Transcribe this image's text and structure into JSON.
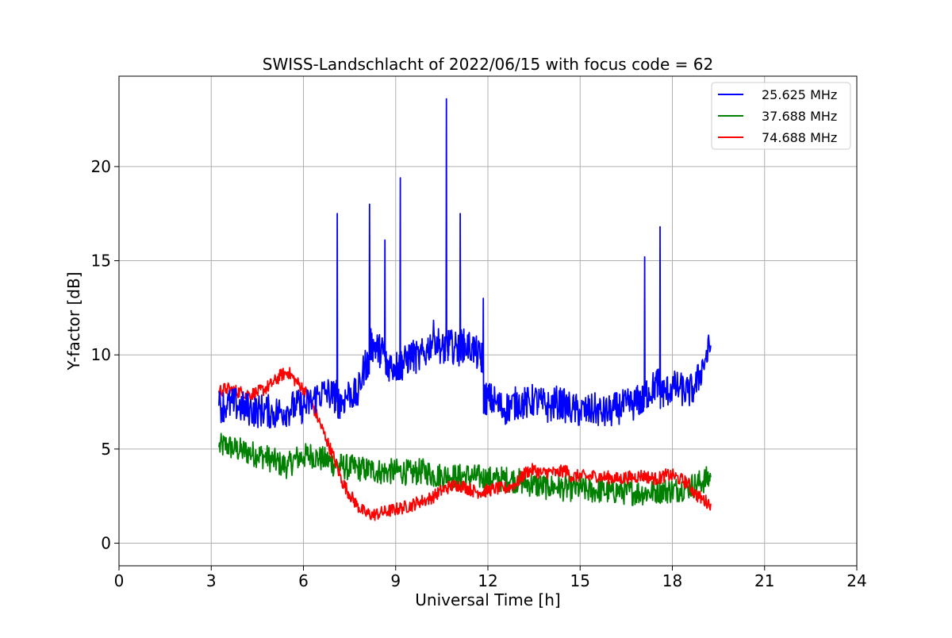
{
  "chart_data": {
    "type": "line",
    "title": "SWISS-Landschlacht of 2022/06/15 with focus code = 62",
    "xlabel": "Universal Time [h]",
    "ylabel": "Y-factor [dB]",
    "xlim": [
      0,
      24
    ],
    "ylim": [
      -1.2,
      24.8
    ],
    "xticks": [
      0,
      3,
      6,
      9,
      12,
      15,
      18,
      21,
      24
    ],
    "yticks": [
      0,
      5,
      10,
      15,
      20
    ],
    "grid": true,
    "legend_position": "top-right",
    "series": [
      {
        "name": "25.625 MHz",
        "color": "#0000ff",
        "x": [
          3.25,
          3.5,
          3.75,
          4.0,
          4.25,
          4.5,
          4.75,
          5.0,
          5.25,
          5.5,
          5.75,
          6.0,
          6.25,
          6.5,
          6.75,
          7.0,
          7.1,
          7.25,
          7.5,
          7.75,
          8.0,
          8.15,
          8.3,
          8.5,
          8.65,
          8.75,
          9.0,
          9.15,
          9.25,
          9.5,
          9.75,
          10.0,
          10.25,
          10.5,
          10.65,
          10.75,
          11.0,
          11.1,
          11.25,
          11.5,
          11.75,
          11.85,
          12.0,
          12.25,
          12.5,
          12.75,
          13.0,
          13.25,
          13.5,
          13.75,
          14.0,
          14.25,
          14.5,
          14.75,
          15.0,
          15.25,
          15.5,
          15.75,
          16.0,
          16.25,
          16.5,
          16.75,
          16.95,
          17.1,
          17.25,
          17.5,
          17.6,
          17.75,
          18.0,
          18.25,
          18.5,
          18.75,
          19.0,
          19.25
        ],
        "y": [
          7.3,
          7.3,
          7.4,
          7.2,
          7.1,
          7.0,
          7.1,
          6.9,
          7.0,
          7.1,
          7.3,
          7.2,
          7.5,
          7.9,
          8.0,
          7.8,
          17.5,
          7.5,
          8.0,
          7.8,
          9.5,
          18.0,
          10.5,
          10.2,
          16.1,
          9.5,
          9.4,
          19.4,
          9.5,
          10.0,
          9.8,
          10.2,
          11.0,
          10.3,
          23.6,
          10.5,
          10.3,
          17.5,
          10.5,
          10.4,
          9.8,
          13.0,
          7.7,
          7.5,
          7.1,
          7.3,
          7.5,
          7.4,
          7.6,
          7.4,
          7.2,
          7.5,
          7.3,
          7.1,
          7.0,
          7.0,
          7.1,
          6.9,
          7.0,
          7.2,
          7.3,
          7.4,
          7.6,
          15.2,
          8.0,
          8.5,
          16.8,
          8.0,
          8.3,
          8.2,
          8.0,
          8.3,
          9.5,
          10.5
        ]
      },
      {
        "name": "37.688 MHz",
        "color": "#008000",
        "x": [
          3.25,
          3.5,
          3.75,
          4.0,
          4.25,
          4.5,
          4.75,
          5.0,
          5.25,
          5.5,
          5.75,
          6.0,
          6.25,
          6.5,
          6.75,
          7.0,
          7.25,
          7.5,
          7.75,
          8.0,
          8.25,
          8.5,
          8.75,
          9.0,
          9.25,
          9.5,
          9.75,
          10.0,
          10.25,
          10.5,
          10.75,
          11.0,
          11.25,
          11.5,
          11.75,
          12.0,
          12.25,
          12.5,
          12.75,
          13.0,
          13.25,
          13.5,
          13.75,
          14.0,
          14.25,
          14.5,
          14.75,
          15.0,
          15.25,
          15.5,
          15.75,
          16.0,
          16.25,
          16.5,
          16.75,
          17.0,
          17.25,
          17.5,
          17.75,
          18.0,
          18.25,
          18.5,
          18.75,
          19.0,
          19.25
        ],
        "y": [
          5.1,
          5.2,
          5.0,
          4.9,
          4.8,
          4.7,
          4.6,
          4.4,
          4.2,
          4.1,
          4.5,
          4.6,
          4.7,
          4.5,
          4.4,
          4.2,
          4.1,
          4.0,
          4.0,
          3.9,
          3.9,
          3.8,
          3.8,
          3.8,
          3.8,
          3.7,
          3.8,
          3.8,
          3.6,
          3.6,
          3.6,
          3.5,
          3.6,
          3.5,
          3.5,
          3.4,
          3.4,
          3.4,
          3.4,
          3.3,
          3.2,
          3.1,
          3.0,
          3.0,
          3.0,
          2.9,
          2.9,
          2.9,
          2.8,
          2.8,
          2.8,
          2.7,
          2.8,
          2.7,
          2.7,
          2.7,
          2.7,
          2.8,
          2.8,
          2.8,
          2.9,
          3.0,
          3.1,
          3.3,
          3.5
        ]
      },
      {
        "name": "74.688 MHz",
        "color": "#ff0000",
        "x": [
          3.25,
          3.5,
          3.75,
          4.0,
          4.25,
          4.5,
          4.75,
          5.0,
          5.25,
          5.5,
          5.75,
          6.0,
          6.25,
          6.5,
          6.75,
          7.0,
          7.25,
          7.5,
          7.75,
          8.0,
          8.25,
          8.5,
          8.75,
          9.0,
          9.25,
          9.5,
          9.75,
          10.0,
          10.25,
          10.5,
          10.75,
          11.0,
          11.25,
          11.5,
          11.75,
          12.0,
          12.25,
          12.5,
          12.75,
          13.0,
          13.25,
          13.5,
          13.75,
          14.0,
          14.25,
          14.5,
          14.75,
          15.0,
          15.25,
          15.5,
          15.75,
          16.0,
          16.25,
          16.5,
          16.75,
          17.0,
          17.25,
          17.5,
          17.75,
          18.0,
          18.25,
          18.5,
          18.75,
          19.0,
          19.25
        ],
        "y": [
          8.1,
          8.2,
          8.1,
          8.0,
          7.9,
          8.0,
          8.2,
          8.5,
          8.9,
          9.1,
          8.6,
          8.2,
          7.5,
          6.5,
          5.5,
          4.5,
          3.3,
          2.6,
          2.0,
          1.6,
          1.5,
          1.6,
          1.7,
          1.8,
          1.9,
          2.0,
          2.2,
          2.3,
          2.5,
          2.8,
          3.0,
          3.1,
          3.0,
          2.8,
          2.7,
          2.8,
          2.9,
          2.9,
          3.0,
          3.3,
          3.8,
          3.9,
          3.7,
          3.8,
          3.7,
          3.9,
          3.5,
          3.6,
          3.5,
          3.6,
          3.5,
          3.5,
          3.4,
          3.5,
          3.5,
          3.6,
          3.5,
          3.4,
          3.6,
          3.6,
          3.4,
          3.2,
          2.6,
          2.3,
          2.1
        ]
      }
    ]
  }
}
